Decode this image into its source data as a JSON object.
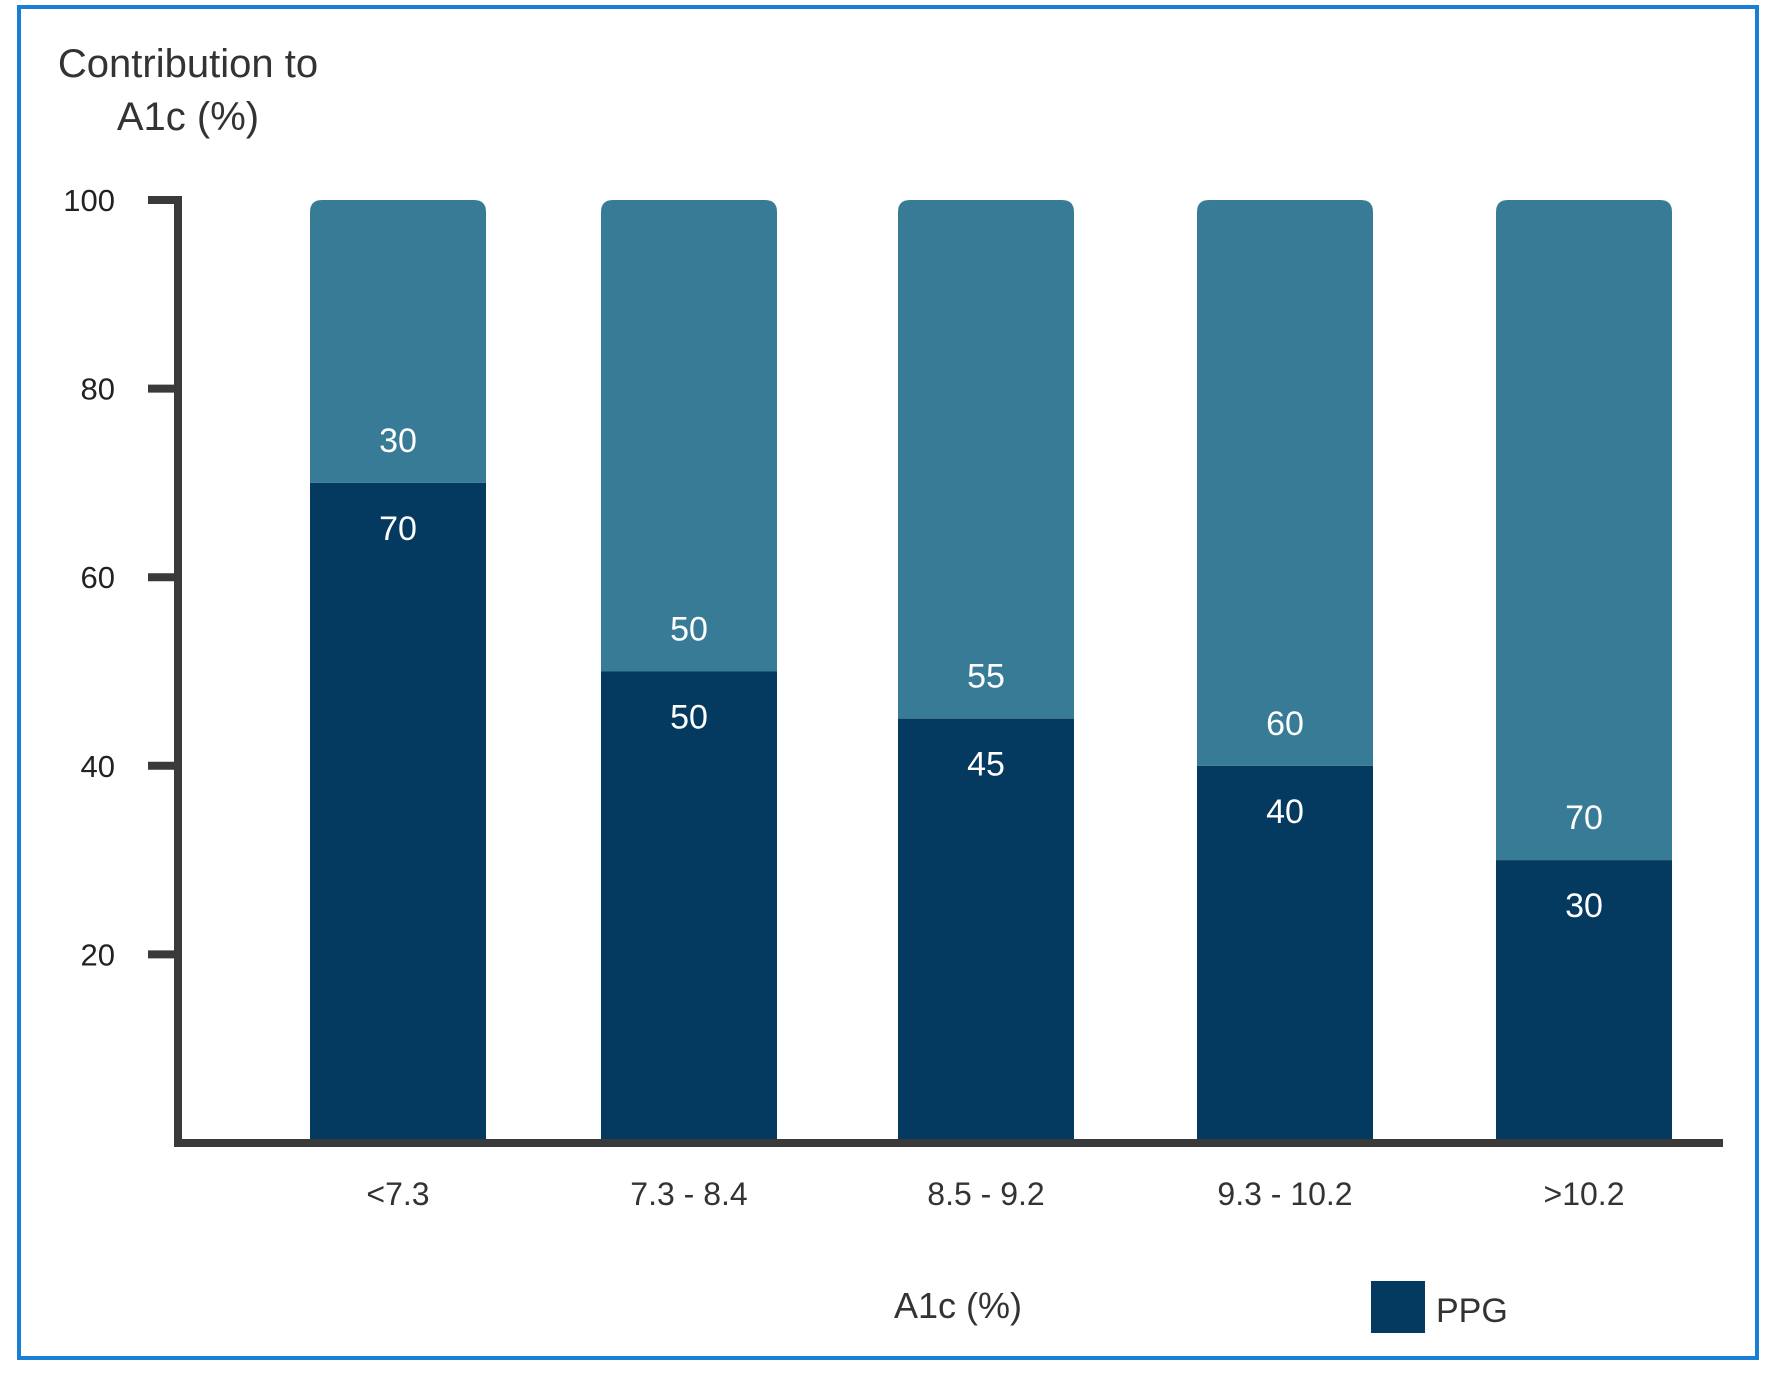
{
  "colors": {
    "frame": "#1a7fd4",
    "axis": "#3a3a3a",
    "ppg": "#043a5f",
    "other": "#377b96",
    "label_text": "#ffffff"
  },
  "chart_data": {
    "type": "bar",
    "stacked": true,
    "ylabel_lines": [
      "Contribution to",
      "A1c (%)"
    ],
    "xlabel": "A1c (%)",
    "ylim": [
      0,
      100
    ],
    "yticks": [
      20,
      40,
      60,
      80,
      100
    ],
    "categories": [
      "<7.3",
      "7.3 - 8.4",
      "8.5 - 9.2",
      "9.3 - 10.2",
      ">10.2"
    ],
    "series": [
      {
        "name": "PPG",
        "values": [
          70,
          50,
          45,
          40,
          30
        ]
      },
      {
        "values": [
          30,
          50,
          55,
          60,
          70
        ]
      }
    ],
    "legend": {
      "entries": [
        "PPG"
      ],
      "position": "bottom-right"
    },
    "grid": false
  }
}
